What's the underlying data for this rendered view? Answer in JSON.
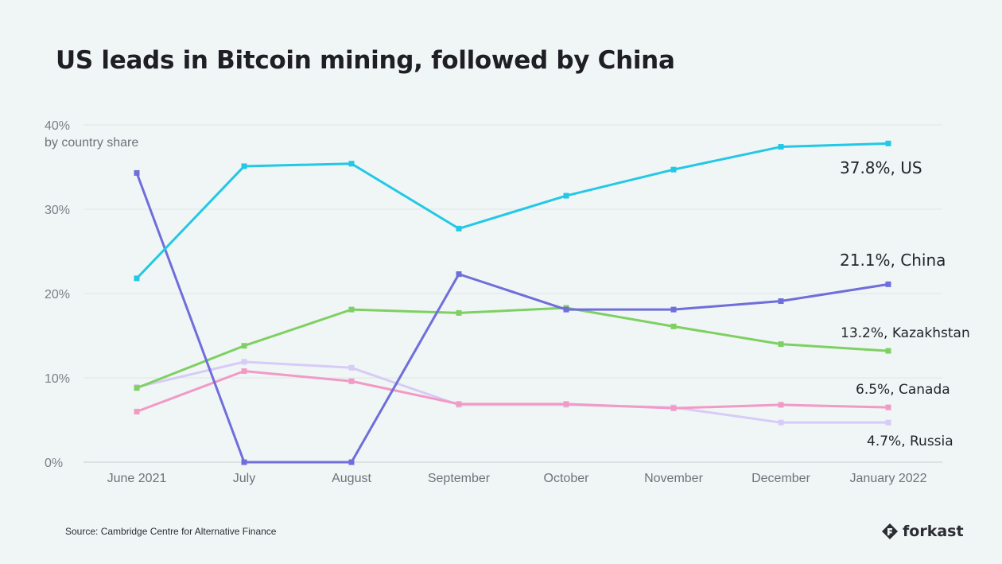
{
  "title": "US leads in Bitcoin mining, followed by China",
  "source": "Source: Cambridge Centre for Alternative Finance",
  "brand": "forkast",
  "chart_data": {
    "type": "line",
    "title": "US leads in Bitcoin mining, followed by China",
    "ylabel": "by country share",
    "xlabel": "",
    "ylim": [
      0,
      40
    ],
    "yticks": [
      "0%",
      "10%",
      "20%",
      "30%",
      "40%"
    ],
    "categories": [
      "June 2021",
      "July",
      "August",
      "September",
      "October",
      "November",
      "December",
      "January 2022"
    ],
    "grid": true,
    "legend": "end-labels",
    "series": [
      {
        "name": "US",
        "color": "#22c8e5",
        "label": "37.8%, US",
        "values": [
          21.8,
          35.1,
          35.4,
          27.7,
          31.6,
          34.7,
          37.4,
          37.8
        ]
      },
      {
        "name": "China",
        "color": "#6f6edb",
        "label": "21.1%, China",
        "values": [
          34.3,
          0,
          0,
          22.3,
          18.1,
          18.1,
          19.1,
          21.1
        ]
      },
      {
        "name": "Kazakhstan",
        "color": "#7ed063",
        "label": "13.2%, Kazakhstan",
        "values": [
          8.8,
          13.8,
          18.1,
          17.7,
          18.3,
          16.1,
          14.0,
          13.2
        ]
      },
      {
        "name": "Canada",
        "color": "#f29ac6",
        "label": "6.5%, Canada",
        "values": [
          6.0,
          10.8,
          9.6,
          6.9,
          6.9,
          6.4,
          6.8,
          6.5
        ]
      },
      {
        "name": "Russia",
        "color": "#d7cbf7",
        "label": "4.7%, Russia",
        "values": [
          8.9,
          11.9,
          11.2,
          6.8,
          6.8,
          6.5,
          4.7,
          4.7
        ]
      }
    ]
  }
}
